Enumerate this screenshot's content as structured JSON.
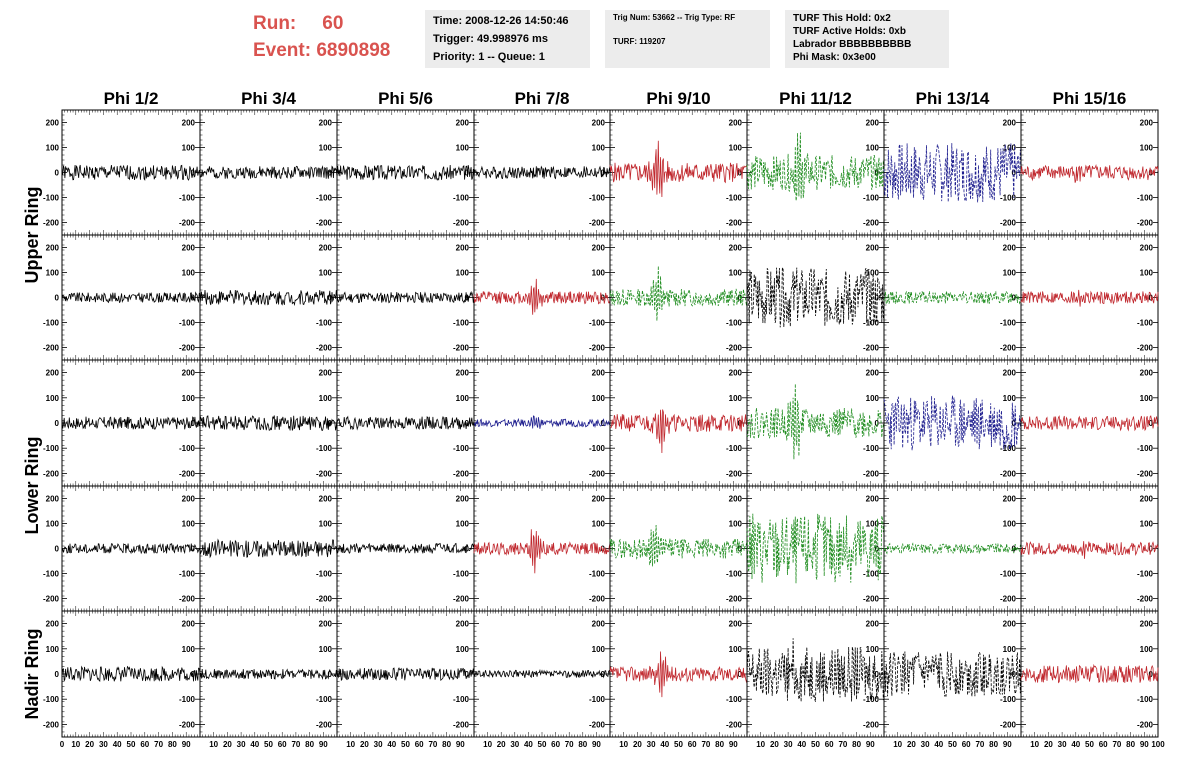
{
  "header": {
    "run_label": "Run:",
    "run_value": "60",
    "event_label": "Event:",
    "event_value": "6890898",
    "info_time": "Time: 2008-12-26 14:50:46",
    "info_trigger": "Trigger: 49.998976 ms",
    "info_priority": "Priority: 1 -- Queue: 1",
    "info_trignum": "Trig Num: 53662 -- Trig Type: RF",
    "info_turf": "TURF: 119207",
    "info_hold": "TURF This Hold: 0x2",
    "info_active": "TURF Active Holds: 0xb",
    "info_labrador": "Labrador BBBBBBBBBB",
    "info_phimask": "Phi Mask: 0x3e00"
  },
  "chart_data": {
    "type": "line",
    "columns": [
      "Phi 1/2",
      "Phi 3/4",
      "Phi 5/6",
      "Phi 7/8",
      "Phi 9/10",
      "Phi 11/12",
      "Phi 13/14",
      "Phi 15/16"
    ],
    "rows": [
      "Upper Ring",
      "Upper Ring",
      "Lower Ring",
      "Lower Ring",
      "Nadir Ring"
    ],
    "row_labels": [
      {
        "text": "Upper Ring",
        "rows": [
          0,
          1
        ]
      },
      {
        "text": "Lower Ring",
        "rows": [
          2,
          3
        ]
      },
      {
        "text": "Nadir Ring",
        "rows": [
          4,
          4
        ]
      }
    ],
    "xlim": [
      0,
      100
    ],
    "ylim": [
      -250,
      250
    ],
    "y_ticks": [
      -200,
      -100,
      0,
      100,
      200
    ],
    "x_tick_labels": [
      "0",
      "10",
      "20",
      "30",
      "40",
      "50",
      "60",
      "70",
      "80",
      "90",
      "100"
    ],
    "colors": {
      "black": "#000000",
      "red": "#c0272d",
      "green": "#1e8c1e",
      "blue": "#1f1f8f"
    },
    "panels": [
      [
        {
          "c": "black",
          "amp": 30,
          "burst": 0,
          "pos": 50,
          "s": 1
        },
        {
          "c": "black",
          "amp": 25,
          "burst": 0,
          "pos": 50,
          "s": 2
        },
        {
          "c": "black",
          "amp": 30,
          "burst": 0,
          "pos": 50,
          "s": 3
        },
        {
          "c": "black",
          "amp": 25,
          "burst": 0,
          "pos": 50,
          "s": 4
        },
        {
          "c": "red",
          "amp": 40,
          "burst": 110,
          "pos": 35,
          "s": 5
        },
        {
          "c": "green",
          "amp": 70,
          "burst": 160,
          "pos": 38,
          "s": 6,
          "dash": true
        },
        {
          "c": "blue",
          "amp": 120,
          "burst": 0,
          "pos": 50,
          "s": 7,
          "dash": true
        },
        {
          "c": "red",
          "amp": 30,
          "burst": 25,
          "pos": 40,
          "s": 8
        }
      ],
      [
        {
          "c": "black",
          "amp": 20,
          "burst": 0,
          "pos": 50,
          "s": 9
        },
        {
          "c": "black",
          "amp": 30,
          "burst": 0,
          "pos": 50,
          "s": 10
        },
        {
          "c": "black",
          "amp": 22,
          "burst": 0,
          "pos": 50,
          "s": 11
        },
        {
          "c": "red",
          "amp": 25,
          "burst": 70,
          "pos": 45,
          "s": 12
        },
        {
          "c": "green",
          "amp": 35,
          "burst": 100,
          "pos": 35,
          "s": 13,
          "dash": true
        },
        {
          "c": "black",
          "amp": 120,
          "burst": 0,
          "pos": 50,
          "s": 14,
          "dash": true
        },
        {
          "c": "green",
          "amp": 25,
          "burst": 0,
          "pos": 50,
          "s": 15,
          "dash": true
        },
        {
          "c": "red",
          "amp": 25,
          "burst": 35,
          "pos": 45,
          "s": 16
        }
      ],
      [
        {
          "c": "black",
          "amp": 25,
          "burst": 0,
          "pos": 50,
          "s": 17
        },
        {
          "c": "black",
          "amp": 30,
          "burst": 0,
          "pos": 50,
          "s": 18
        },
        {
          "c": "black",
          "amp": 25,
          "burst": 0,
          "pos": 50,
          "s": 19
        },
        {
          "c": "blue",
          "amp": 15,
          "burst": 25,
          "pos": 45,
          "s": 20
        },
        {
          "c": "red",
          "amp": 35,
          "burst": 100,
          "pos": 38,
          "s": 21
        },
        {
          "c": "green",
          "amp": 60,
          "burst": 120,
          "pos": 35,
          "s": 22,
          "dash": true
        },
        {
          "c": "blue",
          "amp": 110,
          "burst": 0,
          "pos": 50,
          "s": 23,
          "dash": true
        },
        {
          "c": "red",
          "amp": 28,
          "burst": 0,
          "pos": 50,
          "s": 24
        }
      ],
      [
        {
          "c": "black",
          "amp": 20,
          "burst": 0,
          "pos": 50,
          "s": 25
        },
        {
          "c": "black",
          "amp": 35,
          "burst": 0,
          "pos": 50,
          "s": 26
        },
        {
          "c": "black",
          "amp": 20,
          "burst": 0,
          "pos": 50,
          "s": 27
        },
        {
          "c": "red",
          "amp": 25,
          "burst": 95,
          "pos": 45,
          "s": 28
        },
        {
          "c": "green",
          "amp": 40,
          "burst": 100,
          "pos": 33,
          "s": 29,
          "dash": true
        },
        {
          "c": "green",
          "amp": 140,
          "burst": 0,
          "pos": 50,
          "s": 30,
          "dash": true
        },
        {
          "c": "green",
          "amp": 20,
          "burst": 0,
          "pos": 50,
          "s": 31,
          "dash": true
        },
        {
          "c": "red",
          "amp": 25,
          "burst": 30,
          "pos": 45,
          "s": 32
        }
      ],
      [
        {
          "c": "black",
          "amp": 30,
          "burst": 0,
          "pos": 50,
          "s": 33
        },
        {
          "c": "black",
          "amp": 20,
          "burst": 0,
          "pos": 50,
          "s": 34
        },
        {
          "c": "black",
          "amp": 25,
          "burst": 0,
          "pos": 50,
          "s": 35
        },
        {
          "c": "black",
          "amp": 15,
          "burst": 0,
          "pos": 50,
          "s": 36
        },
        {
          "c": "red",
          "amp": 30,
          "burst": 80,
          "pos": 38,
          "s": 37
        },
        {
          "c": "black",
          "amp": 110,
          "burst": 50,
          "pos": 33,
          "s": 38,
          "dash": true
        },
        {
          "c": "black",
          "amp": 90,
          "burst": 0,
          "pos": 50,
          "s": 39,
          "dash": true
        },
        {
          "c": "red",
          "amp": 35,
          "burst": 0,
          "pos": 50,
          "s": 40
        }
      ]
    ]
  }
}
